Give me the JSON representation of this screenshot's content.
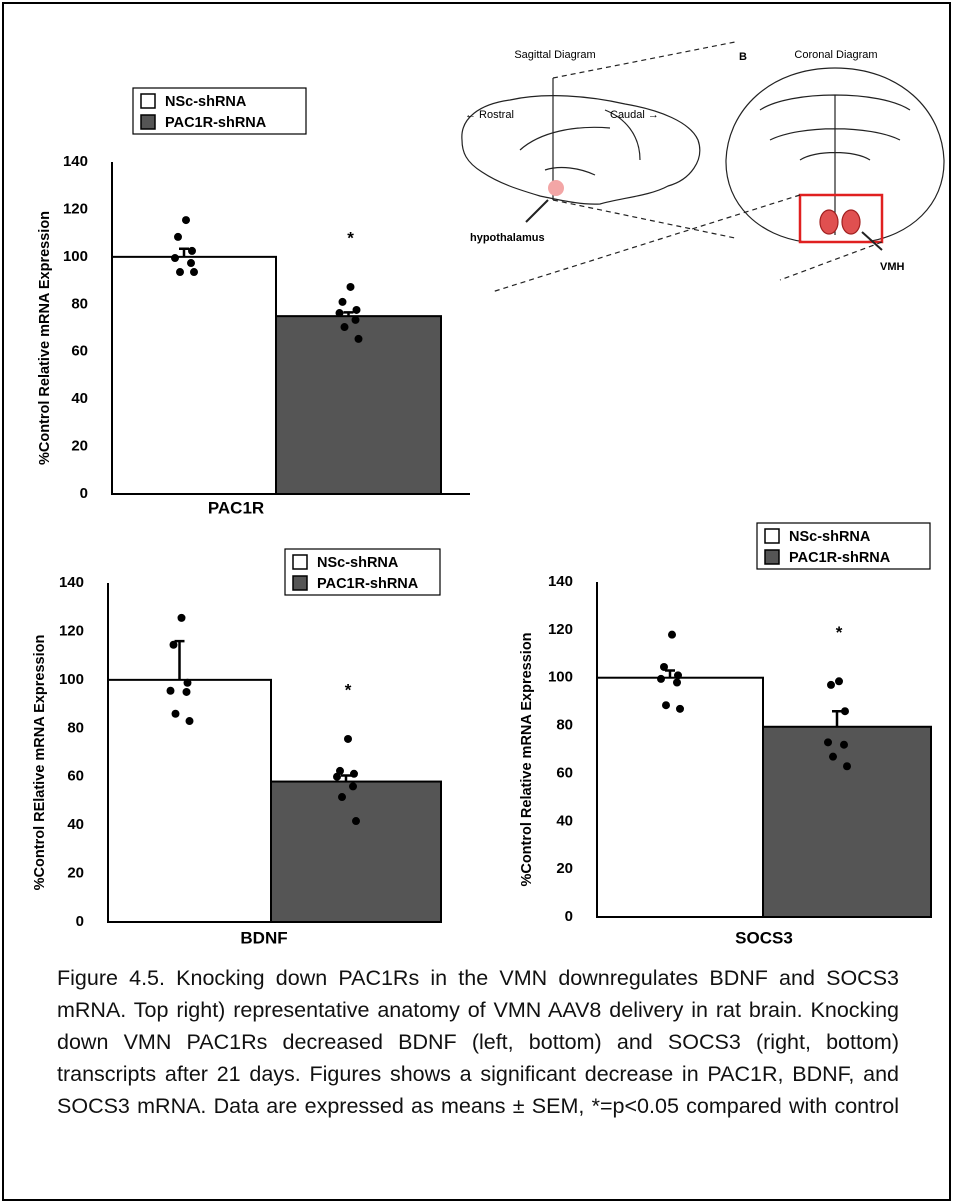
{
  "diagram": {
    "sagittal_title": "Sagittal Diagram",
    "panel_label": "B",
    "coronal_title": "Coronal Diagram",
    "rostral": "← Rostral",
    "caudal": "Caudal →",
    "hypothalamus": "hypothalamus",
    "vmh": "VMH"
  },
  "chart_data": [
    {
      "type": "bar",
      "x_label": "PAC1R",
      "y_label": "%Control Relative mRNA Expression",
      "ylim": [
        0,
        140
      ],
      "yticks": [
        0,
        20,
        40,
        60,
        80,
        100,
        120,
        140
      ],
      "annotation": "*",
      "series": [
        {
          "name": "NSc-shRNA",
          "color": "#ffffff",
          "values": [
            100
          ],
          "errors": [
            3.4
          ],
          "points": [
            115.5,
            108.4,
            102.5,
            99.5,
            97.4,
            93.6,
            93.6
          ]
        },
        {
          "name": "PAC1R-shRNA",
          "color": "#555555",
          "values": [
            75
          ],
          "errors": [
            1.6
          ],
          "points": [
            87.3,
            81,
            77.6,
            76.3,
            73.4,
            70.4,
            65.4
          ]
        }
      ]
    },
    {
      "type": "bar",
      "x_label": "BDNF",
      "y_label": "%Control RElative mRNA Expression",
      "ylim": [
        0,
        140
      ],
      "yticks": [
        0,
        20,
        40,
        60,
        80,
        100,
        120,
        140
      ],
      "annotation": "*",
      "series": [
        {
          "name": "NSc-shRNA",
          "color": "#ffffff",
          "values": [
            100
          ],
          "errors": [
            16
          ],
          "points": [
            125.6,
            114.5,
            98.8,
            95.5,
            95,
            86,
            83
          ]
        },
        {
          "name": "PAC1R-shRNA",
          "color": "#555555",
          "values": [
            58
          ],
          "errors": [
            2.5
          ],
          "points": [
            75.6,
            62.4,
            61.2,
            60,
            56,
            51.6,
            41.7
          ]
        }
      ]
    },
    {
      "type": "bar",
      "x_label": "SOCS3",
      "y_label": "%Control Relative mRNA Expression",
      "ylim": [
        0,
        140
      ],
      "yticks": [
        0,
        20,
        40,
        60,
        80,
        100,
        120,
        140
      ],
      "annotation": "*",
      "series": [
        {
          "name": "NSc-shRNA",
          "color": "#ffffff",
          "values": [
            100
          ],
          "errors": [
            3
          ],
          "points": [
            118,
            104.5,
            101,
            99.5,
            98,
            88.5,
            87
          ]
        },
        {
          "name": "PAC1R-shRNA",
          "color": "#555555",
          "values": [
            79.5
          ],
          "errors": [
            6.5
          ],
          "points": [
            98.5,
            97,
            86,
            73,
            72,
            67,
            63
          ]
        }
      ]
    }
  ],
  "caption": "Figure 4.5. Knocking down PAC1Rs in the VMN downregulates BDNF and SOCS3 mRNA. Top right) representative anatomy of VMN AAV8 delivery in rat brain. Knocking down VMN PAC1Rs decreased BDNF (left, bottom) and SOCS3 (right, bottom) transcripts after 21 days. Figures shows a significant decrease in PAC1R, BDNF, and SOCS3 mRNA. Data are expressed as means ± SEM, *=p<0.05 compared with control"
}
